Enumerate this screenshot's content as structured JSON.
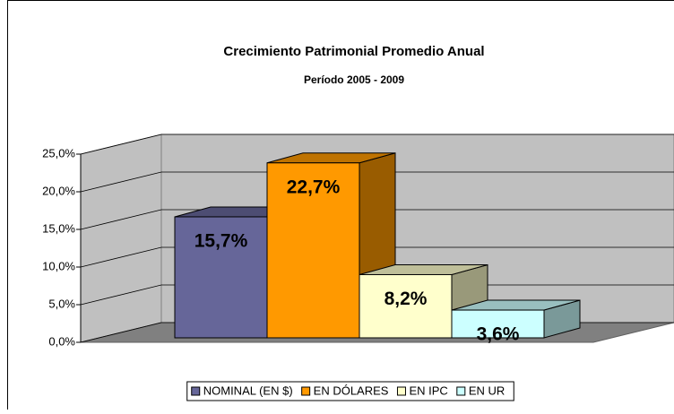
{
  "chart_data": {
    "type": "bar",
    "title": "Crecimiento Patrimonial Promedio Anual",
    "subtitle": "Período 2005 - 2009",
    "series": [
      {
        "name": "NOMINAL (EN $)",
        "color": "#666699",
        "values": [
          15.7
        ],
        "value_labels": [
          "15,7%"
        ]
      },
      {
        "name": "EN DÓLARES",
        "color": "#FF9900",
        "values": [
          22.7
        ],
        "value_labels": [
          "22,7%"
        ]
      },
      {
        "name": "EN IPC",
        "color": "#FFFFCC",
        "values": [
          8.2
        ],
        "value_labels": [
          "8,2%"
        ]
      },
      {
        "name": "EN UR",
        "color": "#CCFFFF",
        "values": [
          3.6
        ],
        "value_labels": [
          "3,6%"
        ]
      }
    ],
    "ylim": [
      0,
      25
    ],
    "yticks": [
      {
        "value": 0,
        "label": "0,0%"
      },
      {
        "value": 5,
        "label": "5,0%"
      },
      {
        "value": 10,
        "label": "10,0%"
      },
      {
        "value": 15,
        "label": "15,0%"
      },
      {
        "value": 20,
        "label": "20,0%"
      },
      {
        "value": 25,
        "label": "25,0%"
      }
    ],
    "grid": true,
    "legend": "bottom"
  }
}
